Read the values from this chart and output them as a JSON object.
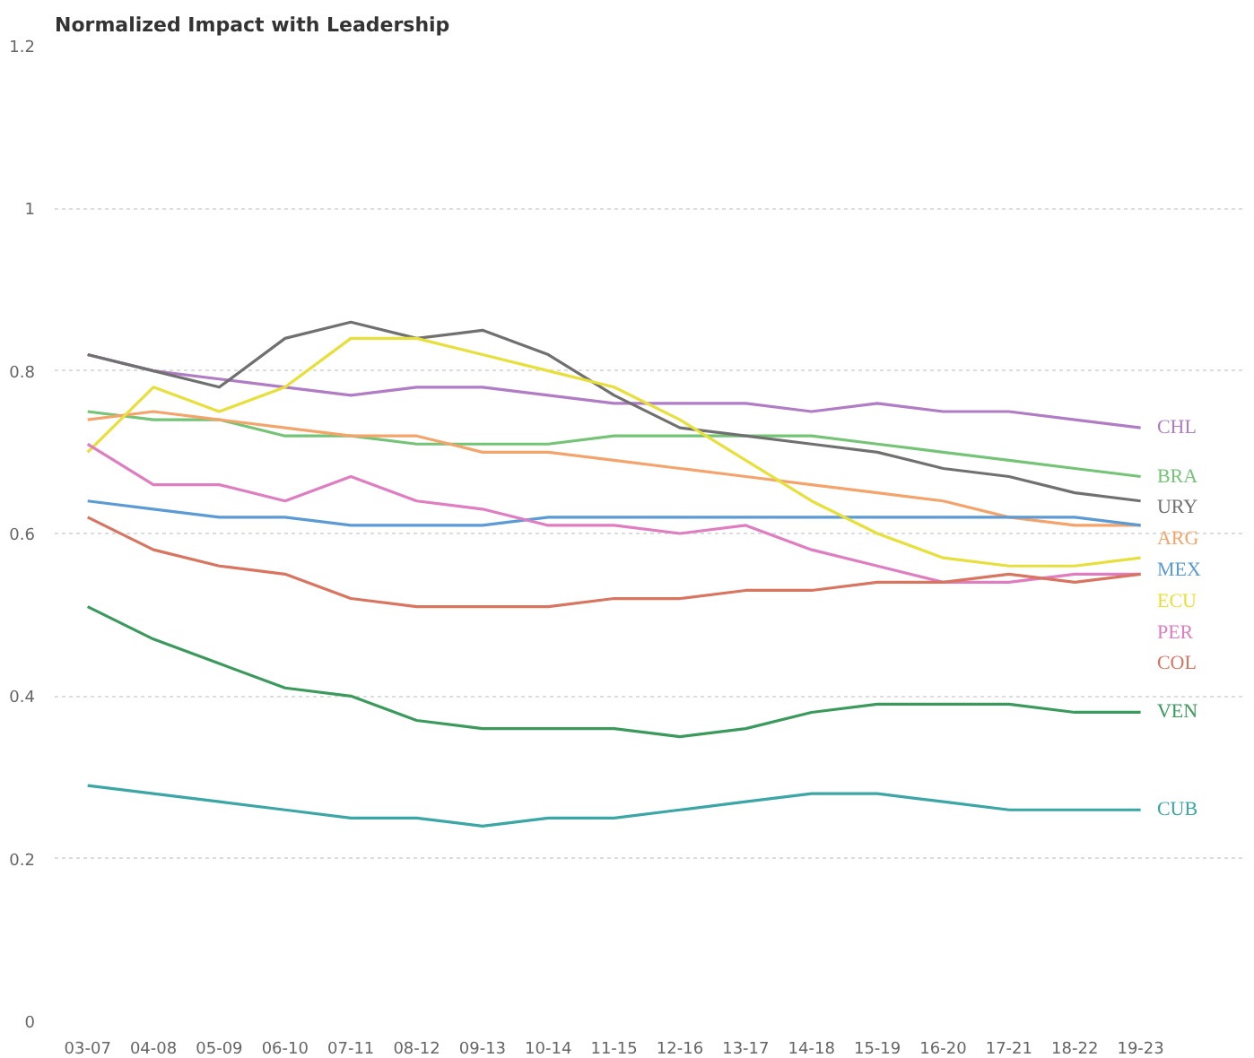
{
  "chart_data": {
    "type": "line",
    "title": "Normalized Impact with Leadership",
    "categories": [
      "03-07",
      "04-08",
      "05-09",
      "06-10",
      "07-11",
      "08-12",
      "09-13",
      "10-14",
      "11-15",
      "12-16",
      "13-17",
      "14-18",
      "15-19",
      "16-20",
      "17-21",
      "18-22",
      "19-23"
    ],
    "ylim": [
      0,
      1.2
    ],
    "yticks": [
      0,
      0.2,
      0.4,
      0.6,
      0.8,
      1,
      1.2
    ],
    "grid": "y",
    "legend": false,
    "marker": "none",
    "line_style": "solid",
    "series": [
      {
        "name": "CHL",
        "color": "#b07cc6",
        "values": [
          0.82,
          0.8,
          0.79,
          0.78,
          0.77,
          0.78,
          0.78,
          0.77,
          0.76,
          0.76,
          0.76,
          0.75,
          0.76,
          0.75,
          0.75,
          0.74,
          0.73
        ]
      },
      {
        "name": "BRA",
        "color": "#74c476",
        "values": [
          0.75,
          0.74,
          0.74,
          0.72,
          0.72,
          0.71,
          0.71,
          0.71,
          0.72,
          0.72,
          0.72,
          0.72,
          0.71,
          0.7,
          0.69,
          0.68,
          0.67
        ]
      },
      {
        "name": "URY",
        "color": "#707070",
        "values": [
          0.82,
          0.8,
          0.78,
          0.84,
          0.86,
          0.84,
          0.85,
          0.82,
          0.77,
          0.73,
          0.72,
          0.71,
          0.7,
          0.68,
          0.67,
          0.65,
          0.64
        ]
      },
      {
        "name": "ARG",
        "color": "#f4a46a",
        "values": [
          0.74,
          0.75,
          0.74,
          0.73,
          0.72,
          0.72,
          0.7,
          0.7,
          0.69,
          0.68,
          0.67,
          0.66,
          0.65,
          0.64,
          0.62,
          0.61,
          0.61
        ]
      },
      {
        "name": "MEX",
        "color": "#5b9bd5",
        "values": [
          0.64,
          0.63,
          0.62,
          0.62,
          0.61,
          0.61,
          0.61,
          0.62,
          0.62,
          0.62,
          0.62,
          0.62,
          0.62,
          0.62,
          0.62,
          0.62,
          0.61
        ]
      },
      {
        "name": "ECU",
        "color": "#e8e03a",
        "values": [
          0.7,
          0.78,
          0.75,
          0.78,
          0.84,
          0.84,
          0.82,
          0.8,
          0.78,
          0.74,
          0.69,
          0.64,
          0.6,
          0.57,
          0.56,
          0.56,
          0.57
        ]
      },
      {
        "name": "PER",
        "color": "#e07cc0",
        "values": [
          0.71,
          0.66,
          0.66,
          0.64,
          0.67,
          0.64,
          0.63,
          0.61,
          0.61,
          0.6,
          0.61,
          0.58,
          0.56,
          0.54,
          0.54,
          0.55,
          0.55
        ]
      },
      {
        "name": "COL",
        "color": "#d9745f",
        "values": [
          0.62,
          0.58,
          0.56,
          0.55,
          0.52,
          0.51,
          0.51,
          0.51,
          0.52,
          0.52,
          0.53,
          0.53,
          0.54,
          0.54,
          0.55,
          0.54,
          0.55
        ]
      },
      {
        "name": "VEN",
        "color": "#3a9a5b",
        "values": [
          0.51,
          0.47,
          0.44,
          0.41,
          0.4,
          0.37,
          0.36,
          0.36,
          0.36,
          0.35,
          0.36,
          0.38,
          0.39,
          0.39,
          0.39,
          0.38,
          0.38
        ]
      },
      {
        "name": "CUB",
        "color": "#3aa6a6",
        "values": [
          0.29,
          0.28,
          0.27,
          0.26,
          0.25,
          0.25,
          0.24,
          0.25,
          0.25,
          0.26,
          0.27,
          0.28,
          0.28,
          0.27,
          0.26,
          0.26,
          0.26
        ]
      }
    ]
  }
}
